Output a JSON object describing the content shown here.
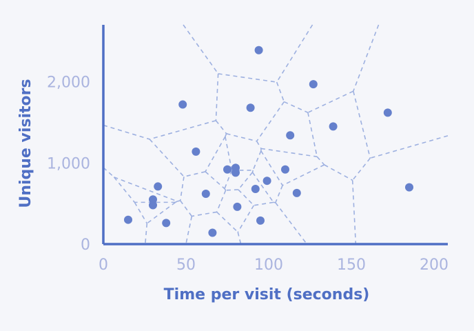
{
  "chart_data": {
    "type": "scatter",
    "title": "",
    "xlabel": "Time per visit (seconds)",
    "ylabel": "Unique visitors",
    "xlim": [
      0,
      210
    ],
    "ylim": [
      0,
      2700
    ],
    "xticks": [
      {
        "value": 0,
        "label": "0"
      },
      {
        "value": 50,
        "label": "50"
      },
      {
        "value": 100,
        "label": "100"
      },
      {
        "value": 150,
        "label": "150"
      },
      {
        "value": 200,
        "label": "200"
      }
    ],
    "yticks": [
      {
        "value": 0,
        "label": "0"
      },
      {
        "value": 1000,
        "label": "1,000"
      },
      {
        "value": 2000,
        "label": "2,000"
      }
    ],
    "grid": false,
    "overlay": "voronoi",
    "colors": {
      "points": "#6580cc",
      "axis": "#4f6fc4",
      "ticks": "#aab4df",
      "voronoi": "#9db0e0"
    },
    "points": [
      {
        "x": 15,
        "y": 300
      },
      {
        "x": 30,
        "y": 550
      },
      {
        "x": 30,
        "y": 480
      },
      {
        "x": 33,
        "y": 710
      },
      {
        "x": 38,
        "y": 260
      },
      {
        "x": 48,
        "y": 1720
      },
      {
        "x": 56,
        "y": 1140
      },
      {
        "x": 62,
        "y": 620
      },
      {
        "x": 66,
        "y": 140
      },
      {
        "x": 75,
        "y": 920
      },
      {
        "x": 80,
        "y": 880
      },
      {
        "x": 80,
        "y": 940
      },
      {
        "x": 81,
        "y": 460
      },
      {
        "x": 89,
        "y": 1680
      },
      {
        "x": 92,
        "y": 680
      },
      {
        "x": 94,
        "y": 2390
      },
      {
        "x": 95,
        "y": 290
      },
      {
        "x": 99,
        "y": 780
      },
      {
        "x": 110,
        "y": 920
      },
      {
        "x": 113,
        "y": 1340
      },
      {
        "x": 117,
        "y": 630
      },
      {
        "x": 127,
        "y": 1970
      },
      {
        "x": 139,
        "y": 1450
      },
      {
        "x": 172,
        "y": 1620
      },
      {
        "x": 185,
        "y": 700
      }
    ]
  }
}
